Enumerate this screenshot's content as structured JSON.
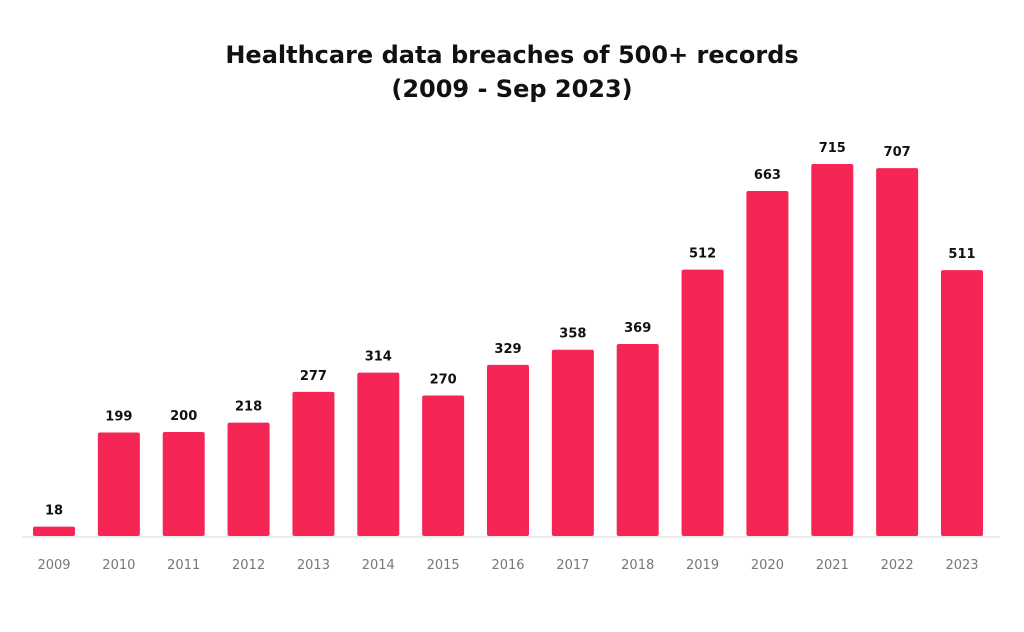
{
  "chart_data": {
    "type": "bar",
    "title": "Healthcare data breaches of 500+ records",
    "subtitle": "(2009 - Sep 2023)",
    "xlabel": "",
    "ylabel": "",
    "categories": [
      "2009",
      "2010",
      "2011",
      "2012",
      "2013",
      "2014",
      "2015",
      "2016",
      "2017",
      "2018",
      "2019",
      "2020",
      "2021",
      "2022",
      "2023"
    ],
    "values": [
      18,
      199,
      200,
      218,
      277,
      314,
      270,
      329,
      358,
      369,
      512,
      663,
      715,
      707,
      511
    ],
    "ylim": [
      0,
      715
    ],
    "grid": false,
    "legend": "none",
    "bar_color": "#f52556",
    "label_color": "#111111",
    "tick_color": "#777777",
    "axis_color": "#e6e6e6"
  }
}
